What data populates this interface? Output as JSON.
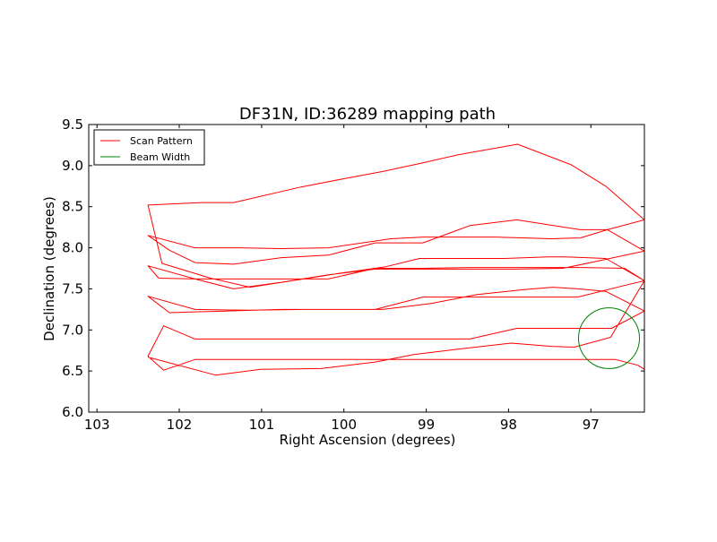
{
  "chart_data": {
    "type": "line",
    "title": "DF31N, ID:36289 mapping path",
    "xlabel": "Right Ascension (degrees)",
    "ylabel": "Declination (degrees)",
    "xlim": [
      103.1,
      96.35
    ],
    "ylim": [
      6.0,
      9.5
    ],
    "x_ticks": [
      103,
      102,
      101,
      100,
      99,
      98,
      97
    ],
    "x_tick_labels": [
      "103",
      "102",
      "101",
      "100",
      "99",
      "98",
      "97"
    ],
    "y_ticks": [
      6.0,
      6.5,
      7.0,
      7.5,
      8.0,
      8.5,
      9.0,
      9.5
    ],
    "y_tick_labels": [
      "6.0",
      "6.5",
      "7.0",
      "7.5",
      "8.0",
      "8.5",
      "9.0",
      "9.5"
    ],
    "grid": false,
    "legend": {
      "placement": "top-left",
      "entries": [
        {
          "label": "Scan Pattern",
          "color": "#ff0000"
        },
        {
          "label": "Beam Width",
          "color": "#008000"
        }
      ]
    },
    "series": [
      {
        "name": "Scan Pattern",
        "color": "#ff0000",
        "x": [
          96.3,
          96.43,
          96.7,
          97.06,
          97.45,
          97.76,
          98.47,
          99.04,
          99.62,
          100.19,
          100.76,
          101.34,
          101.81,
          102.19,
          102.38,
          102.19,
          101.81,
          101.34,
          100.76,
          100.19,
          99.62,
          99.04,
          98.47,
          97.9,
          97.32,
          96.75,
          96.35,
          96.82,
          97.16,
          97.46,
          97.81,
          98.38,
          98.95,
          99.53,
          100.1,
          100.47,
          101.15,
          101.81,
          102.38,
          102.12,
          101.81,
          101.42,
          100.76,
          100.19,
          99.62,
          99.04,
          98.47,
          97.9,
          97.16,
          96.6,
          96.35,
          96.59,
          97.09,
          97.47,
          97.9,
          98.47,
          99.04,
          99.62,
          100.19,
          100.76,
          101.34,
          101.81,
          102.38,
          102.25,
          101.81,
          101.34,
          100.76,
          100.19,
          99.62,
          99.04,
          98.47,
          97.9,
          97.34,
          96.96,
          96.35,
          96.8,
          97.13,
          97.49,
          97.8,
          98.16,
          98.61,
          99.04,
          99.43,
          100.19,
          100.76,
          101.28,
          101.81,
          102.38,
          102.12,
          101.81,
          101.34,
          100.76,
          100.19,
          99.62,
          99.04,
          98.47,
          97.9,
          97.13,
          96.8,
          96.35,
          96.82,
          97.24,
          97.89,
          98.62,
          99.06,
          99.52,
          99.95,
          100.52,
          101.34,
          101.73,
          102.38,
          102.21,
          101.62,
          101.14,
          100.49,
          100.05,
          99.49,
          99.08,
          98.62,
          98.05,
          97.52,
          97.33,
          96.82,
          96.35,
          96.76,
          97.2,
          97.48,
          97.97,
          98.58,
          99.15,
          99.62,
          100.28,
          101.01,
          101.56,
          102.38
        ],
        "y": [
          6.49,
          6.57,
          6.64,
          6.64,
          6.64,
          6.64,
          6.64,
          6.64,
          6.64,
          6.64,
          6.64,
          6.64,
          6.64,
          6.51,
          6.68,
          7.05,
          6.89,
          6.89,
          6.89,
          6.89,
          6.89,
          6.89,
          6.89,
          7.02,
          7.02,
          7.02,
          7.23,
          7.47,
          7.5,
          7.52,
          7.49,
          7.43,
          7.32,
          7.25,
          7.25,
          7.25,
          7.24,
          7.25,
          7.41,
          7.21,
          7.22,
          7.23,
          7.25,
          7.25,
          7.25,
          7.4,
          7.4,
          7.4,
          7.4,
          7.54,
          7.6,
          7.75,
          7.76,
          7.76,
          7.76,
          7.76,
          7.75,
          7.75,
          7.62,
          7.62,
          7.62,
          7.62,
          7.78,
          7.63,
          7.62,
          7.5,
          7.58,
          7.67,
          7.74,
          7.74,
          7.74,
          7.74,
          7.75,
          7.83,
          7.96,
          8.22,
          8.12,
          8.11,
          8.12,
          8.13,
          8.13,
          8.13,
          8.11,
          8.0,
          7.99,
          8.0,
          8.0,
          8.15,
          7.97,
          7.82,
          7.8,
          7.88,
          7.91,
          8.06,
          8.06,
          8.27,
          8.34,
          8.22,
          8.22,
          8.34,
          8.75,
          9.01,
          9.26,
          9.13,
          9.03,
          8.93,
          8.85,
          8.74,
          8.55,
          8.55,
          8.52,
          7.81,
          7.63,
          7.52,
          7.62,
          7.69,
          7.77,
          7.87,
          7.87,
          7.87,
          7.89,
          7.89,
          7.87,
          7.6,
          6.91,
          6.79,
          6.8,
          6.84,
          6.77,
          6.7,
          6.61,
          6.53,
          6.52,
          6.45,
          6.67
        ]
      },
      {
        "name": "Beam Width",
        "color": "#008000",
        "shape": "circle",
        "center": [
          96.78,
          6.9
        ],
        "radius_deg": 0.37
      }
    ]
  }
}
